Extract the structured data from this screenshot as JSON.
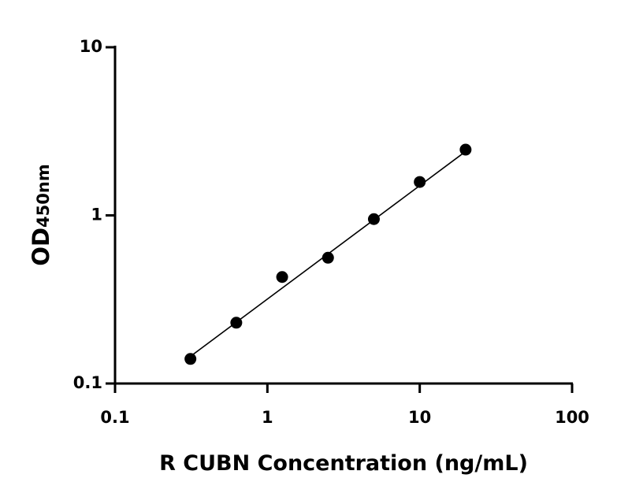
{
  "chart_data": {
    "type": "scatter",
    "xlabel": "R CUBN Concentration (ng/mL)",
    "ylabel": "OD",
    "ylabel_sub": "450nm",
    "x": [
      0.3125,
      0.625,
      1.25,
      2.5,
      5,
      10,
      20
    ],
    "y": [
      0.14,
      0.23,
      0.43,
      0.56,
      0.95,
      1.58,
      2.46
    ],
    "color": "#000000",
    "fit_line": {
      "x": [
        0.3125,
        20
      ],
      "y": [
        0.145,
        2.4
      ]
    },
    "xscale": "log",
    "yscale": "log",
    "xlim": [
      0.1,
      100
    ],
    "ylim": [
      0.1,
      10
    ],
    "xticks": [
      0.1,
      1,
      10,
      100
    ],
    "yticks": [
      0.1,
      1,
      10
    ],
    "grid": false
  }
}
